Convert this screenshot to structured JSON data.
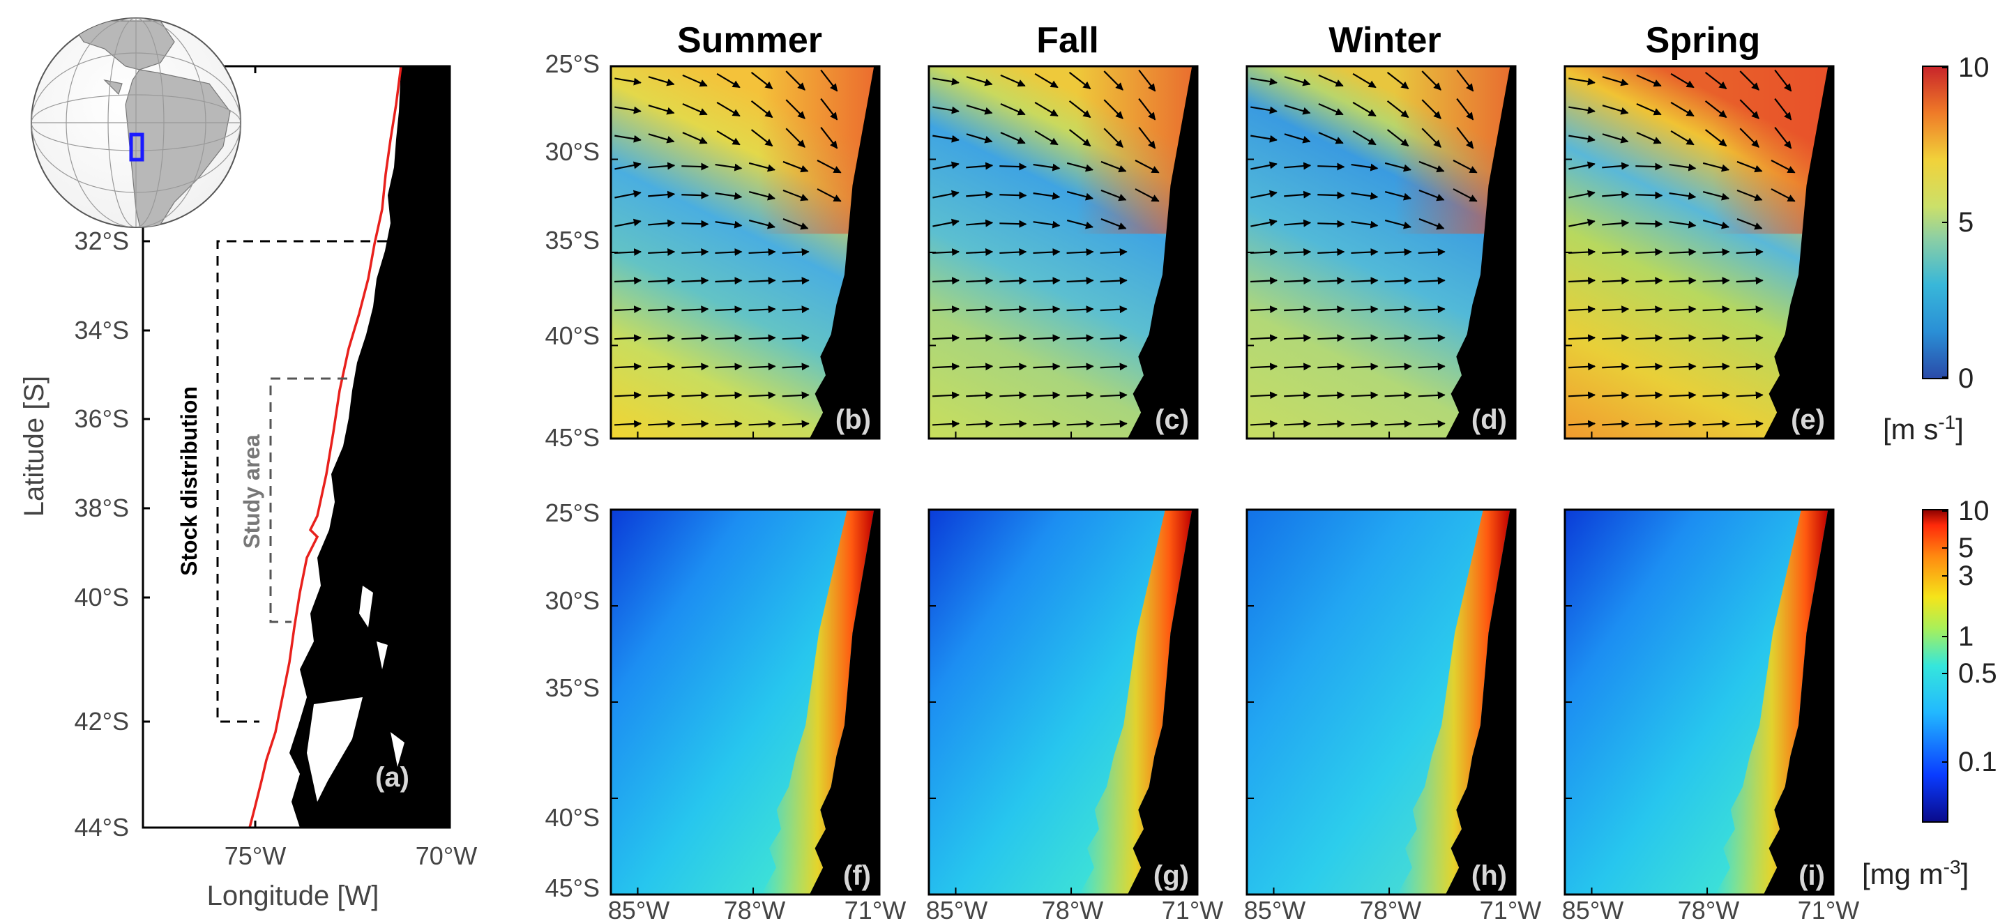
{
  "map_a": {
    "panel_label": "(a)",
    "x_axis_title": "Longitude [W]",
    "y_axis_title": "Latitude [S]",
    "x_ticks": [
      "75°W",
      "70°W"
    ],
    "y_ticks": [
      "32°S",
      "34°S",
      "36°S",
      "38°S",
      "40°S",
      "42°S",
      "44°S"
    ],
    "stock_label": "Stock distribution",
    "study_label": "Study area",
    "coast_color": "#e8201c",
    "inset": {
      "box_color": "#1a1aff",
      "land_color": "#b8b8b8"
    }
  },
  "seasons": [
    "Summer",
    "Fall",
    "Winter",
    "Spring"
  ],
  "wind_row": {
    "panel_labels": [
      "(b)",
      "(c)",
      "(d)",
      "(e)"
    ]
  },
  "chl_row": {
    "panel_labels": [
      "(f)",
      "(g)",
      "(h)",
      "(i)"
    ]
  },
  "grid_ticks": {
    "y": [
      "25°S",
      "30°S",
      "35°S",
      "40°S",
      "45°S"
    ],
    "x": [
      "85°W",
      "78°W",
      "71°W"
    ]
  },
  "colorbar_wind": {
    "ticks": [
      "10",
      "5",
      "0"
    ],
    "unit_main": "[m s",
    "unit_exp": "-1",
    "unit_close": "]"
  },
  "colorbar_chl": {
    "ticks": [
      "10",
      "5",
      "3",
      "1",
      "0.5",
      "0.1"
    ],
    "unit_main": "[mg m",
    "unit_exp": "-3",
    "unit_close": "]"
  }
}
